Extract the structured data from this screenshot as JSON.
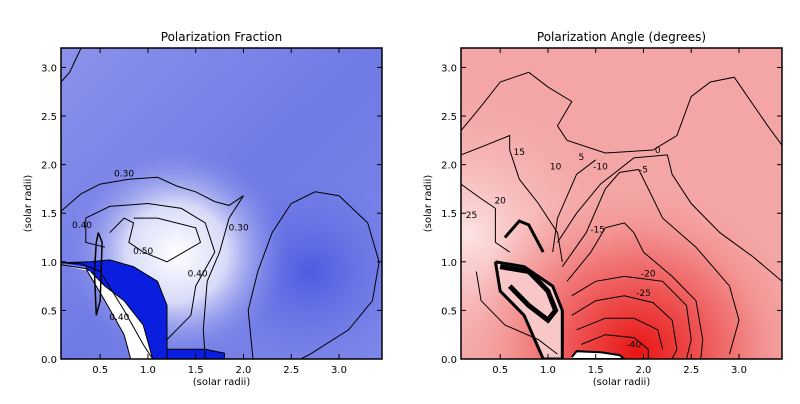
{
  "chart_data": [
    {
      "type": "heatmap",
      "title": "Polarization Fraction",
      "xlabel": "(solar radii)",
      "ylabel": "(solar radii)",
      "xlim": [
        0.09,
        3.45
      ],
      "ylim": [
        0.0,
        3.2
      ],
      "xticks": [
        "0.5",
        "1.0",
        "1.5",
        "2.0",
        "2.5",
        "3.0"
      ],
      "yticks": [
        "0.0",
        "0.5",
        "1.0",
        "1.5",
        "2.0",
        "2.5",
        "3.0"
      ],
      "colormap": [
        "#0a1ee0",
        "#6f79e6",
        "#ffffff"
      ],
      "contour_levels": [
        "0.30",
        "0.40",
        "0.50",
        "0.30",
        "0.40",
        "0.40"
      ],
      "grid": false
    },
    {
      "type": "heatmap",
      "title": "Polarization Angle (degrees)",
      "xlabel": "(solar radii)",
      "ylabel": "(solar radii)",
      "xlim": [
        0.09,
        3.45
      ],
      "ylim": [
        0.0,
        3.2
      ],
      "xticks": [
        "0.5",
        "1.0",
        "1.5",
        "2.0",
        "2.5",
        "3.0"
      ],
      "yticks": [
        "0.0",
        "0.5",
        "1.0",
        "1.5",
        "2.0",
        "2.5",
        "3.0"
      ],
      "colormap": [
        "#e81818",
        "#f2a0a0",
        "#ffffff"
      ],
      "contour_levels": [
        "0",
        "-5",
        "-10",
        "-15",
        "-20",
        "-25",
        "-40",
        "5",
        "10",
        "15",
        "20",
        "25"
      ],
      "grid": false
    }
  ]
}
